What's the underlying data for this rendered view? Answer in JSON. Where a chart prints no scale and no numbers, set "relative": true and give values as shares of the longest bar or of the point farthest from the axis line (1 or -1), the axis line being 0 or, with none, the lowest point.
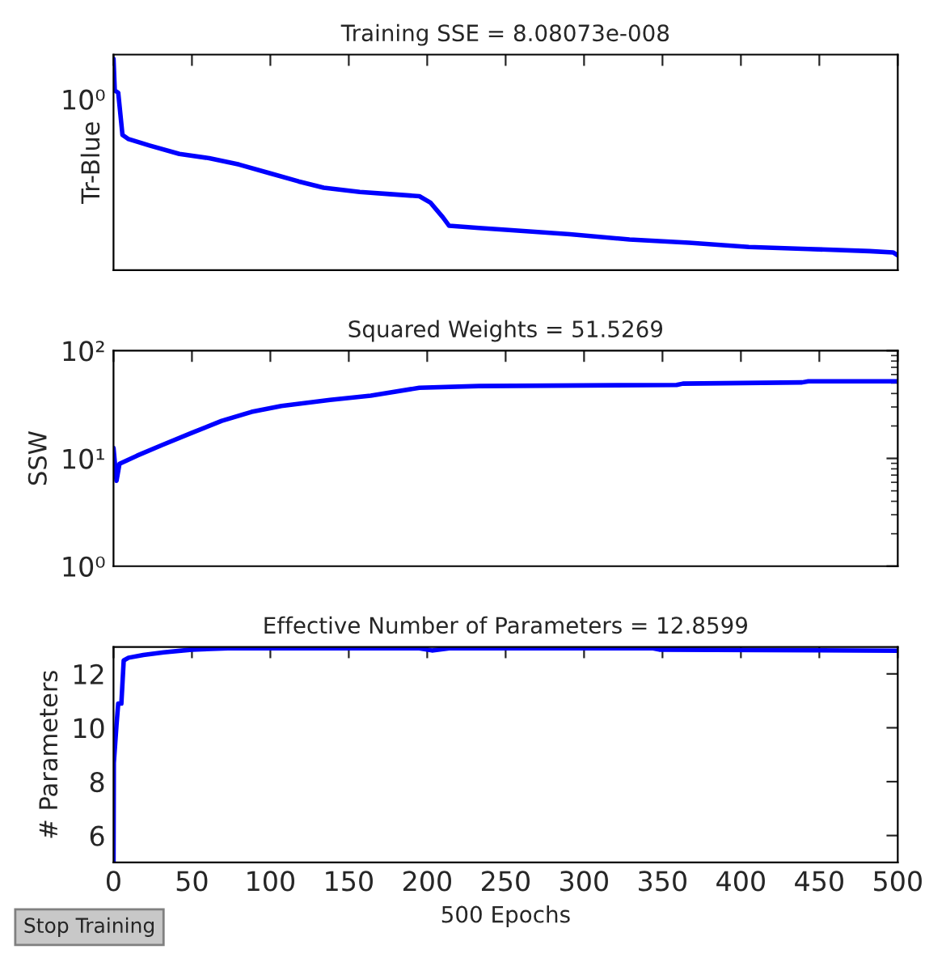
{
  "chart_data": [
    {
      "type": "line",
      "title": "Training SSE = 8.08073e-008",
      "ylabel": "Tr-Blue",
      "relative": true,
      "annotations": [
        "10⁰"
      ],
      "xlim": [
        0,
        500
      ],
      "xticks": [
        0,
        50,
        100,
        150,
        200,
        250,
        300,
        350,
        400,
        450,
        500
      ],
      "tick_labels": false,
      "grid": false,
      "legend": false,
      "series": [
        {
          "color": "#0000ff",
          "x": [
            0,
            0.8,
            3,
            5.7,
            9.6,
            23,
            42,
            61,
            80,
            99,
            118,
            134,
            157,
            176,
            195,
            202,
            210,
            214,
            233,
            252,
            291,
            329,
            367,
            405,
            443,
            482,
            497,
            500
          ],
          "values": [
            1.0,
            0.85,
            0.84,
            0.64,
            0.62,
            0.59,
            0.55,
            0.53,
            0.5,
            0.46,
            0.42,
            0.39,
            0.37,
            0.36,
            0.35,
            0.32,
            0.25,
            0.21,
            0.2,
            0.19,
            0.17,
            0.145,
            0.13,
            0.11,
            0.1,
            0.09,
            0.084,
            0.07
          ]
        }
      ]
    },
    {
      "type": "line",
      "title": "Squared Weights = 51.5269",
      "ylabel": "SSW",
      "log": true,
      "ylim": [
        1,
        100
      ],
      "yticks": [
        {
          "value": 1,
          "label": "10⁰"
        },
        {
          "value": 10,
          "label": "10¹"
        },
        {
          "value": 100,
          "label": "10²"
        }
      ],
      "xlim": [
        0,
        500
      ],
      "xticks": [
        0,
        50,
        100,
        150,
        200,
        250,
        300,
        350,
        400,
        450,
        500
      ],
      "tick_labels": "y",
      "grid": false,
      "legend": false,
      "series": [
        {
          "color": "#0000ff",
          "x": [
            0,
            1.9,
            3.8,
            15,
            31,
            50,
            69,
            88,
            107,
            138,
            164,
            195,
            233,
            359,
            363,
            439,
            443,
            500
          ],
          "values": [
            12.5,
            6.2,
            8.9,
            10.6,
            13.3,
            17.3,
            22.3,
            27,
            30.7,
            34.9,
            38.2,
            45.2,
            46.9,
            48.1,
            49.4,
            50.7,
            52,
            52
          ]
        }
      ]
    },
    {
      "type": "line",
      "title": "Effective Number of Parameters = 12.8599",
      "ylabel": "# Parameters",
      "xlabel": "500 Epochs",
      "annotations": [
        "Stop Training"
      ],
      "ylim": [
        5,
        13
      ],
      "yticks": [
        6,
        8,
        10,
        12
      ],
      "xlim": [
        0,
        500
      ],
      "xticks": [
        0,
        50,
        100,
        150,
        200,
        250,
        300,
        350,
        400,
        450,
        500
      ],
      "grid": false,
      "legend": false,
      "series": [
        {
          "color": "#0000ff",
          "x": [
            0,
            0.2,
            1.9,
            3,
            5,
            6.5,
            9.6,
            19,
            32,
            50,
            73,
            195,
            203,
            214,
            344,
            348,
            500
          ],
          "values": [
            5,
            8.7,
            10.1,
            10.9,
            10.9,
            12.5,
            12.6,
            12.7,
            12.8,
            12.9,
            12.95,
            12.95,
            12.87,
            12.95,
            12.95,
            12.9,
            12.86
          ]
        }
      ]
    }
  ]
}
